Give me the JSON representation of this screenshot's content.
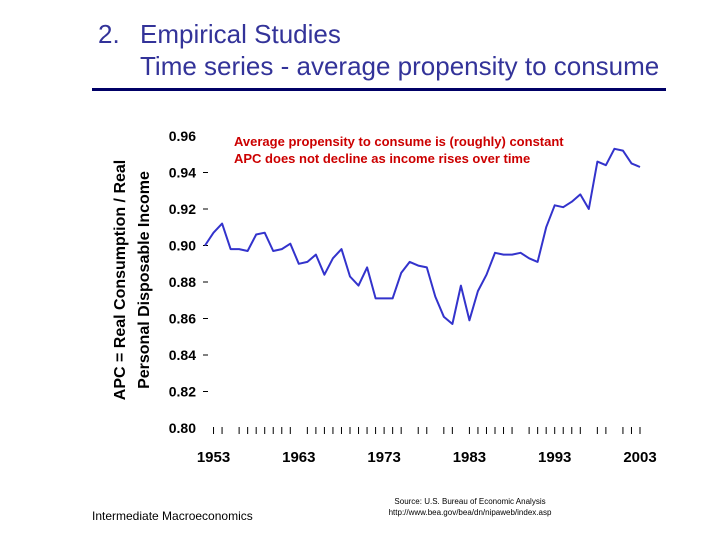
{
  "slide": {
    "number": "2.",
    "heading": "Empirical Studies",
    "subheading": "Time series - average propensity to consume",
    "footer": "Intermediate Macroeconomics",
    "source_line1": "Source: U.S. Bureau of Economic Analysis",
    "source_line2": "http://www.bea.gov/bea/dn/nipaweb/index.asp"
  },
  "colors": {
    "title": "#333399",
    "rule": "#000066",
    "series": "#3333cc",
    "annotation": "#cc0000"
  },
  "chart_data": {
    "type": "line",
    "ylabel_line1": "APC = Real Consumption / Real",
    "ylabel_line2": "Personal Disposable Income",
    "ylim": [
      0.8,
      0.96
    ],
    "yticks": [
      "0.96",
      "0.94",
      "0.92",
      "0.90",
      "0.88",
      "0.86",
      "0.84",
      "0.82",
      "0.80"
    ],
    "xticks": [
      "1953",
      "1963",
      "1973",
      "1983",
      "1993",
      "2003"
    ],
    "xlim": [
      1952,
      2003
    ],
    "annotations": [
      "Average propensity to consume is (roughly) constant",
      "APC does not decline as income rises over time"
    ],
    "series": [
      {
        "name": "APC",
        "x": [
          1952,
          1953,
          1954,
          1955,
          1956,
          1957,
          1958,
          1959,
          1960,
          1961,
          1962,
          1963,
          1964,
          1965,
          1966,
          1967,
          1968,
          1969,
          1970,
          1971,
          1972,
          1973,
          1974,
          1975,
          1976,
          1977,
          1978,
          1979,
          1980,
          1981,
          1982,
          1983,
          1984,
          1985,
          1986,
          1987,
          1988,
          1989,
          1990,
          1991,
          1992,
          1993,
          1994,
          1995,
          1996,
          1997,
          1998,
          1999,
          2000,
          2001,
          2002,
          2003
        ],
        "values": [
          0.9,
          0.907,
          0.912,
          0.898,
          0.898,
          0.897,
          0.906,
          0.907,
          0.897,
          0.898,
          0.901,
          0.89,
          0.891,
          0.895,
          0.884,
          0.893,
          0.898,
          0.883,
          0.878,
          0.888,
          0.871,
          0.871,
          0.871,
          0.885,
          0.891,
          0.889,
          0.888,
          0.872,
          0.861,
          0.857,
          0.878,
          0.859,
          0.875,
          0.884,
          0.896,
          0.895,
          0.895,
          0.896,
          0.893,
          0.891,
          0.91,
          0.922,
          0.921,
          0.924,
          0.928,
          0.92,
          0.946,
          0.944,
          0.953,
          0.952,
          0.945,
          0.943
        ]
      }
    ]
  }
}
